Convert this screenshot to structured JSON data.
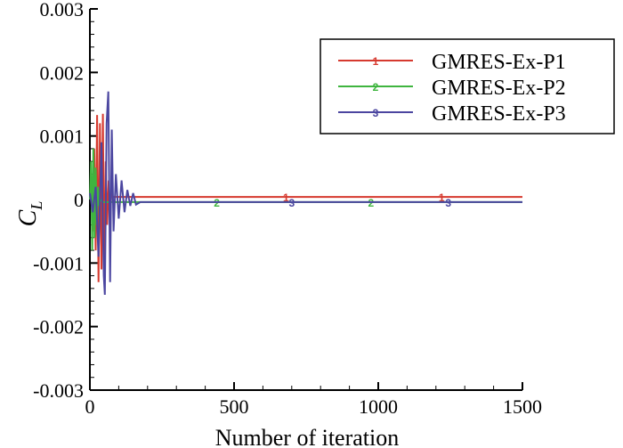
{
  "chart_data": {
    "type": "line",
    "title": "",
    "xlabel": "Number of iteration",
    "ylabel": "C",
    "ylabel_subscript": "L",
    "xlim": [
      0,
      1500
    ],
    "ylim": [
      -0.003,
      0.003
    ],
    "xticks": [
      0,
      500,
      1000,
      1500
    ],
    "xtick_labels": [
      "0",
      "500",
      "1000",
      "1500"
    ],
    "yticks": [
      -0.003,
      -0.002,
      -0.001,
      0,
      0.001,
      0.002,
      0.003
    ],
    "ytick_labels": [
      "-0.003",
      "-0.002",
      "-0.001",
      "0",
      "0.001",
      "0.002",
      "0.003"
    ],
    "grid": false,
    "legend_position": "top-right",
    "series": [
      {
        "name": "GMRES-Ex-P1",
        "symbol": "1",
        "color": "#d63a2f",
        "markers_at": [
          680,
          1220
        ],
        "points": [
          [
            0,
            0
          ],
          [
            5,
            0.0003
          ],
          [
            10,
            -0.0005
          ],
          [
            15,
            0.0008
          ],
          [
            20,
            -0.0008
          ],
          [
            25,
            0.00133
          ],
          [
            30,
            -0.0013
          ],
          [
            35,
            0.0012
          ],
          [
            40,
            -0.0011
          ],
          [
            45,
            0.00135
          ],
          [
            50,
            -0.0013
          ],
          [
            55,
            0.0006
          ],
          [
            60,
            -0.0004
          ],
          [
            65,
            0.0003
          ],
          [
            70,
            -0.0002
          ],
          [
            75,
            0.0001
          ],
          [
            80,
            4e-05
          ],
          [
            1500,
            4e-05
          ]
        ]
      },
      {
        "name": "GMRES-Ex-P2",
        "symbol": "2",
        "color": "#3fb53f",
        "markers_at": [
          440,
          975
        ],
        "points": [
          [
            0,
            0
          ],
          [
            4,
            0.0006
          ],
          [
            8,
            -0.0008
          ],
          [
            12,
            0.0008
          ],
          [
            16,
            -0.0006
          ],
          [
            20,
            0.0005
          ],
          [
            24,
            -0.0004
          ],
          [
            28,
            0.0002
          ],
          [
            32,
            -0.0001
          ],
          [
            36,
            0
          ],
          [
            45,
            -4e-05
          ],
          [
            1500,
            -4e-05
          ]
        ]
      },
      {
        "name": "GMRES-Ex-P3",
        "symbol": "3",
        "color": "#4b46a0",
        "markers_at": [
          700,
          1243
        ],
        "points": [
          [
            0,
            0.0001
          ],
          [
            10,
            -0.0002
          ],
          [
            20,
            0.0002
          ],
          [
            30,
            -0.0009
          ],
          [
            40,
            0.0009
          ],
          [
            48,
            -0.0012
          ],
          [
            52,
            -0.0015
          ],
          [
            58,
            0.0012
          ],
          [
            64,
            0.0017
          ],
          [
            70,
            -0.0013
          ],
          [
            76,
            0.0011
          ],
          [
            82,
            -0.0005
          ],
          [
            90,
            0.0004
          ],
          [
            100,
            -0.0003
          ],
          [
            110,
            0.0003
          ],
          [
            120,
            -0.0002
          ],
          [
            130,
            0.00015
          ],
          [
            140,
            -0.0001
          ],
          [
            150,
            0.0001
          ],
          [
            160,
            -8e-05
          ],
          [
            175,
            -4e-05
          ],
          [
            1500,
            -4e-05
          ]
        ]
      }
    ]
  }
}
